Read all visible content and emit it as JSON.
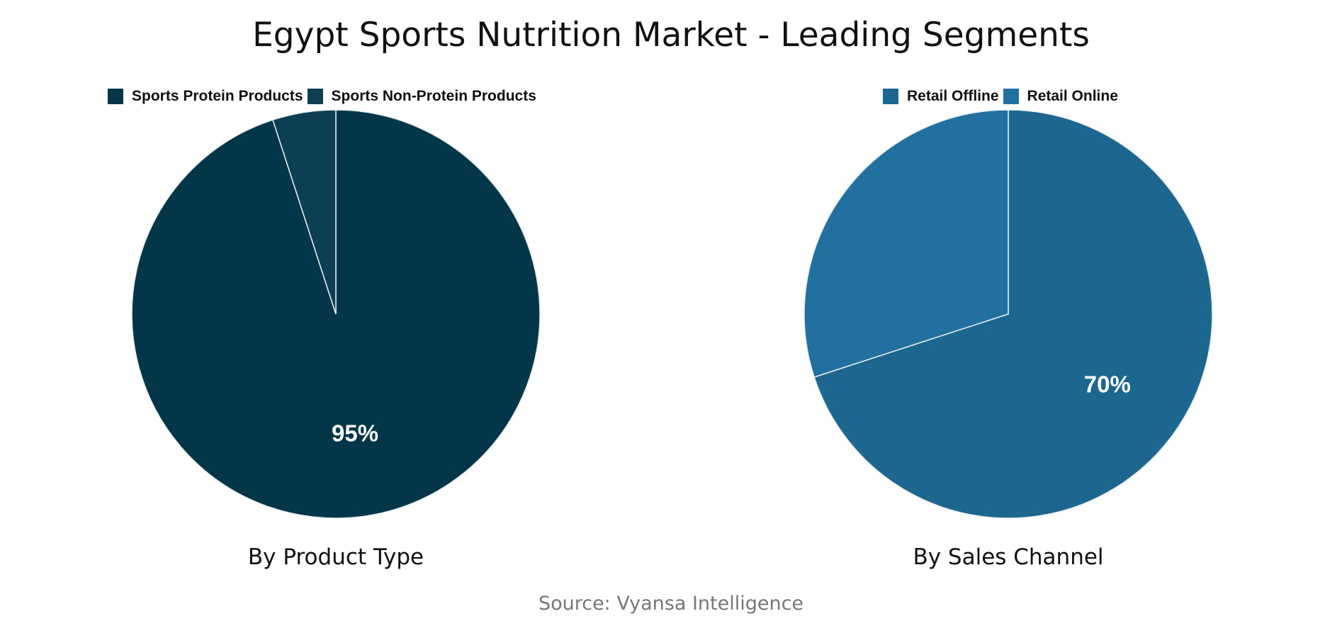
{
  "title": "Egypt Sports Nutrition Market - Leading Segments",
  "source": "Source: Vyansa Intelligence",
  "chart_data": [
    {
      "type": "pie",
      "subtitle": "By Product Type",
      "legend_position": "top",
      "categories": [
        "Sports Protein Products",
        "Sports Non-Protein Products"
      ],
      "values": [
        95,
        5
      ],
      "colors": [
        "#033649",
        "#0d3f52"
      ],
      "data_labels": [
        "95%",
        ""
      ]
    },
    {
      "type": "pie",
      "subtitle": "By Sales Channel",
      "legend_position": "top",
      "categories": [
        "Retail Offline",
        "Retail Online"
      ],
      "values": [
        70,
        30
      ],
      "colors": [
        "#1c6690",
        "#22709f"
      ],
      "data_labels": [
        "70%",
        ""
      ]
    }
  ]
}
